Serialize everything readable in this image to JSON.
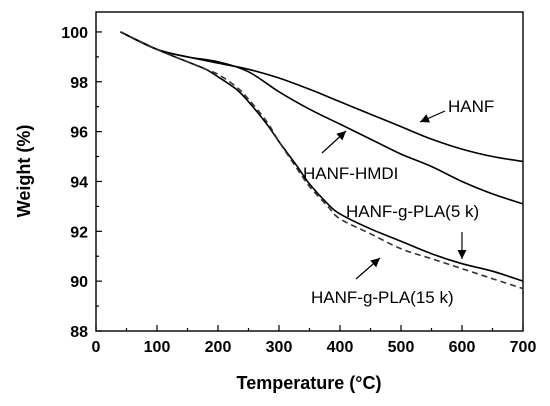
{
  "chart_data": {
    "type": "line",
    "xlabel": "Temperature (°C)",
    "ylabel": "Weight (%)",
    "xlim": [
      0,
      700
    ],
    "ylim": [
      88,
      100.8
    ],
    "xticks": [
      0,
      100,
      200,
      300,
      400,
      500,
      600,
      700
    ],
    "yticks": [
      88,
      90,
      92,
      94,
      96,
      98,
      100
    ],
    "grid": false,
    "legend": "none",
    "series": [
      {
        "name": "HANF",
        "style": "solid",
        "x": [
          40,
          100,
          150,
          200,
          250,
          300,
          350,
          400,
          450,
          500,
          550,
          600,
          650,
          700
        ],
        "y": [
          100,
          99.3,
          99.0,
          98.75,
          98.5,
          98.15,
          97.7,
          97.2,
          96.7,
          96.2,
          95.7,
          95.3,
          95.0,
          94.8
        ]
      },
      {
        "name": "HANF-HMDI",
        "style": "solid",
        "x": [
          40,
          100,
          150,
          200,
          250,
          300,
          350,
          400,
          450,
          500,
          550,
          600,
          650,
          700
        ],
        "y": [
          100,
          99.3,
          99.0,
          98.8,
          98.4,
          97.6,
          96.9,
          96.3,
          95.7,
          95.1,
          94.6,
          94.0,
          93.5,
          93.1
        ]
      },
      {
        "name": "HANF-g-PLA(5 k)",
        "style": "solid",
        "x": [
          40,
          100,
          150,
          180,
          200,
          230,
          250,
          280,
          300,
          330,
          350,
          380,
          400,
          450,
          500,
          550,
          600,
          650,
          700
        ],
        "y": [
          100,
          99.3,
          98.8,
          98.5,
          98.2,
          97.7,
          97.2,
          96.3,
          95.6,
          94.6,
          93.9,
          93.1,
          92.7,
          92.1,
          91.6,
          91.1,
          90.7,
          90.4,
          90.0
        ]
      },
      {
        "name": "HANF-g-PLA(15 k)",
        "style": "dashed",
        "x": [
          40,
          100,
          150,
          180,
          200,
          230,
          250,
          280,
          300,
          330,
          350,
          380,
          400,
          450,
          500,
          550,
          600,
          650,
          700
        ],
        "y": [
          100,
          99.3,
          98.8,
          98.5,
          98.3,
          97.8,
          97.3,
          96.4,
          95.6,
          94.5,
          93.8,
          93.0,
          92.5,
          91.9,
          91.3,
          90.9,
          90.5,
          90.1,
          89.7
        ]
      }
    ],
    "annotations": [
      {
        "text": "HANF"
      },
      {
        "text": "HANF-HMDI"
      },
      {
        "text": "HANF-g-PLA(5 k)"
      },
      {
        "text": "HANF-g-PLA(15 k)"
      }
    ]
  }
}
